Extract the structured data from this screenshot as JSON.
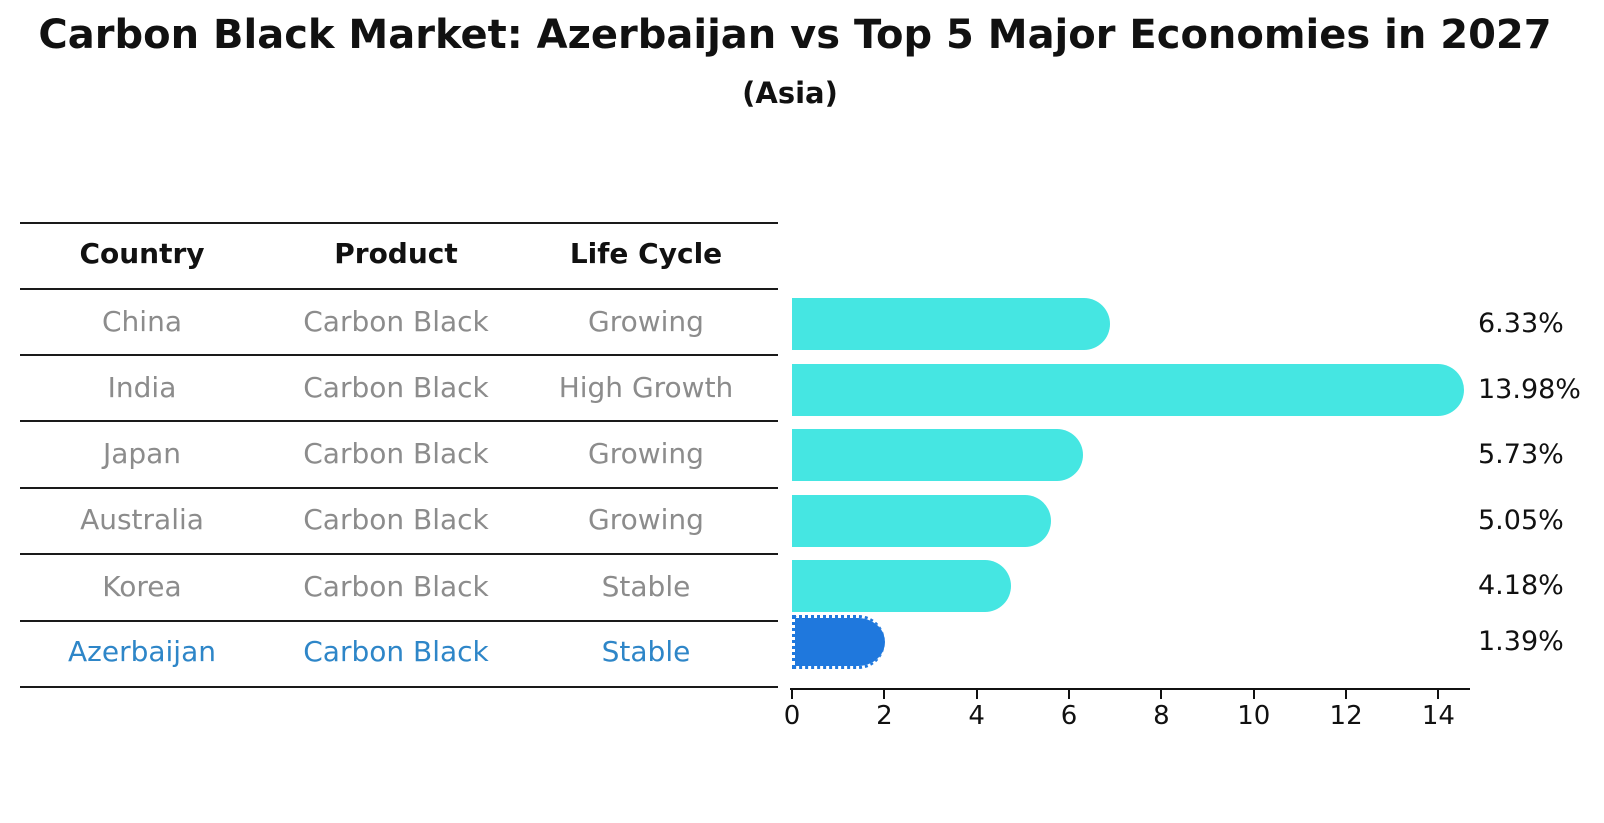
{
  "title": "Carbon Black Market: Azerbaijan vs Top 5 Major Economies in 2027",
  "subtitle": "(Asia)",
  "table": {
    "headers": [
      "Country",
      "Product",
      "Life Cycle"
    ],
    "rows": [
      {
        "country": "China",
        "product": "Carbon Black",
        "life_cycle": "Growing"
      },
      {
        "country": "India",
        "product": "Carbon Black",
        "life_cycle": "High Growth"
      },
      {
        "country": "Japan",
        "product": "Carbon Black",
        "life_cycle": "Growing"
      },
      {
        "country": "Australia",
        "product": "Carbon Black",
        "life_cycle": "Growing"
      },
      {
        "country": "Korea",
        "product": "Carbon Black",
        "life_cycle": "Stable"
      },
      {
        "country": "Azerbaijan",
        "product": "Carbon Black",
        "life_cycle": "Stable"
      }
    ]
  },
  "chart_data": {
    "type": "bar",
    "orientation": "horizontal",
    "categories": [
      "China",
      "India",
      "Japan",
      "Australia",
      "Korea",
      "Azerbaijan"
    ],
    "values": [
      6.33,
      13.98,
      5.73,
      5.05,
      4.18,
      1.39
    ],
    "value_labels": [
      "6.33%",
      "13.98%",
      "5.73%",
      "5.05%",
      "4.18%",
      "1.39%"
    ],
    "x_ticks": [
      "0",
      "2",
      "4",
      "6",
      "8",
      "10",
      "12",
      "14"
    ],
    "xlim": [
      0,
      14.7
    ],
    "title": "Carbon Black Market: Azerbaijan vs Top 5 Major Economies in 2027",
    "xlabel": "",
    "ylabel": "",
    "grid": false,
    "legend": "none",
    "highlight_index": 5,
    "bar_color": "#45e6e2",
    "highlight_color": "#1f78dd",
    "highlight_text_color": "#2e86c8"
  }
}
